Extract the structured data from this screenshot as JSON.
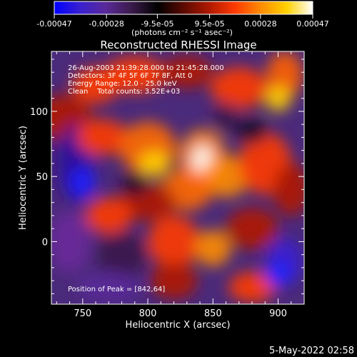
{
  "colorbar": {
    "tick_labels": [
      "-0.00047",
      "-0.00028",
      "-9.5e-05",
      "9.5e-05",
      "0.00028",
      "0.00047"
    ],
    "tick_values": [
      -0.00047,
      -0.00028,
      -9.5e-05,
      9.5e-05,
      0.00028,
      0.00047
    ],
    "range": [
      -0.00047,
      0.00047
    ],
    "unit_label": "(photons cm⁻² s⁻¹ asec⁻²)",
    "stops": [
      "#0000ff",
      "#3a20d0",
      "#5a2a98",
      "#3a1a4a",
      "#000000",
      "#5a0a00",
      "#b01800",
      "#ff3a00",
      "#ff8c00",
      "#ffd200",
      "#ffffff"
    ]
  },
  "image": {
    "annotations": [
      "26-Aug-2003 21:39:28.000 to 21:45:28.000",
      "Detectors: 3F 4F 5F 6F 7F 8F, Att 0",
      "Energy Range: 12.0 - 25.0 keV",
      "Clean    Total counts: 3.52E+03"
    ],
    "peak_label": "Position of Peak = [842,64]"
  },
  "footer": {
    "timestamp": "5-May-2022 02:58"
  },
  "chart_data": {
    "type": "heatmap",
    "title": "Reconstructed RHESSI Image",
    "xlabel": "Heliocentric X (arcsec)",
    "ylabel": "Heliocentric Y (arcsec)",
    "xlim": [
      726,
      920
    ],
    "ylim": [
      -48,
      146
    ],
    "xticks": [
      750,
      800,
      850,
      900
    ],
    "yticks": [
      0,
      50,
      100
    ],
    "xtick_labels": [
      "750",
      "800",
      "850",
      "900"
    ],
    "ytick_labels": [
      "0",
      "50",
      "100"
    ],
    "peak": {
      "x": 842,
      "y": 64
    },
    "grid": false
  }
}
